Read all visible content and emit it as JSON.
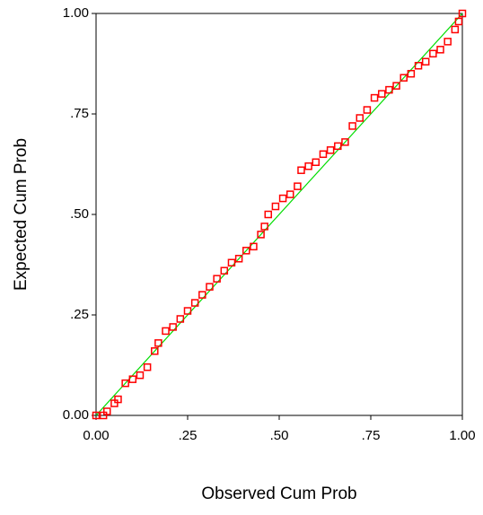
{
  "chart_data": {
    "type": "scatter",
    "xlabel": "Observed Cum Prob",
    "ylabel": "Expected Cum Prob",
    "x": [
      0.0,
      0.02,
      0.03,
      0.05,
      0.06,
      0.08,
      0.1,
      0.12,
      0.14,
      0.16,
      0.17,
      0.19,
      0.21,
      0.23,
      0.25,
      0.27,
      0.29,
      0.31,
      0.33,
      0.35,
      0.37,
      0.39,
      0.41,
      0.43,
      0.45,
      0.46,
      0.47,
      0.49,
      0.51,
      0.53,
      0.55,
      0.56,
      0.58,
      0.6,
      0.62,
      0.64,
      0.66,
      0.68,
      0.7,
      0.72,
      0.74,
      0.76,
      0.78,
      0.8,
      0.82,
      0.84,
      0.86,
      0.88,
      0.9,
      0.92,
      0.94,
      0.96,
      0.98,
      0.99,
      1.0
    ],
    "values": [
      0.0,
      0.0,
      0.01,
      0.03,
      0.04,
      0.08,
      0.09,
      0.1,
      0.12,
      0.16,
      0.18,
      0.21,
      0.22,
      0.24,
      0.26,
      0.28,
      0.3,
      0.32,
      0.34,
      0.36,
      0.38,
      0.39,
      0.41,
      0.42,
      0.45,
      0.47,
      0.5,
      0.52,
      0.54,
      0.55,
      0.57,
      0.61,
      0.62,
      0.63,
      0.65,
      0.66,
      0.67,
      0.68,
      0.72,
      0.74,
      0.76,
      0.79,
      0.8,
      0.81,
      0.82,
      0.84,
      0.85,
      0.87,
      0.88,
      0.9,
      0.91,
      0.93,
      0.96,
      0.98,
      1.0
    ],
    "color": "#ff0000",
    "reference_line_color": "#00dd00",
    "xlim": [
      0,
      1
    ],
    "ylim": [
      0,
      1
    ],
    "xticks": [
      {
        "value": 0,
        "label": "0.00"
      },
      {
        "value": 0.25,
        "label": ".25"
      },
      {
        "value": 0.5,
        "label": ".50"
      },
      {
        "value": 0.75,
        "label": ".75"
      },
      {
        "value": 1,
        "label": "1.00"
      }
    ],
    "yticks": [
      {
        "value": 0,
        "label": "0.00"
      },
      {
        "value": 0.25,
        "label": ".25"
      },
      {
        "value": 0.5,
        "label": ".50"
      },
      {
        "value": 0.75,
        "label": ".75"
      },
      {
        "value": 1,
        "label": "1.00"
      }
    ]
  }
}
